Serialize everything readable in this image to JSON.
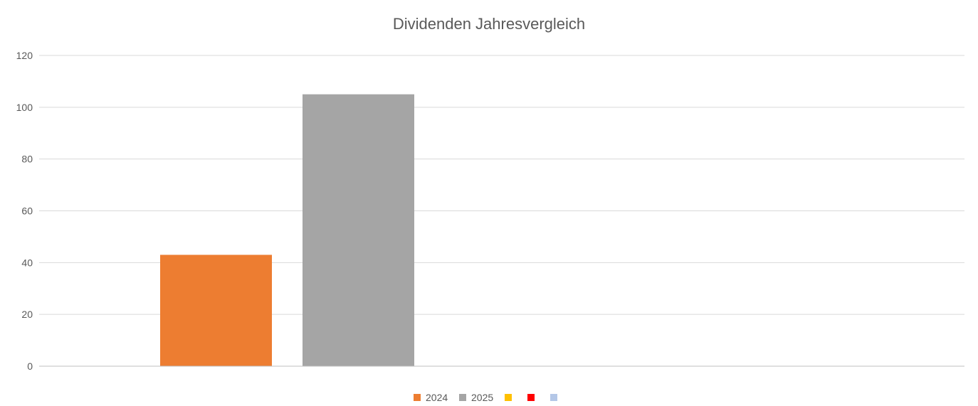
{
  "chart_data": {
    "type": "bar",
    "title": "Dividenden Jahresvergleich",
    "xlabel": "",
    "ylabel": "",
    "ylim": [
      0,
      120
    ],
    "yticks": [
      0,
      20,
      40,
      60,
      80,
      100,
      120
    ],
    "grid": true,
    "legend_position": "bottom",
    "slot_count": 5,
    "series": [
      {
        "name": "2024",
        "value": 43,
        "color": "#ED7D31"
      },
      {
        "name": "2025",
        "value": 105,
        "color": "#A5A5A5"
      },
      {
        "name": "",
        "value": 0,
        "color": "#FFC000"
      },
      {
        "name": "",
        "value": 0,
        "color": "#FF0000"
      },
      {
        "name": "",
        "value": 0,
        "color": "#B4C7E7"
      }
    ]
  }
}
